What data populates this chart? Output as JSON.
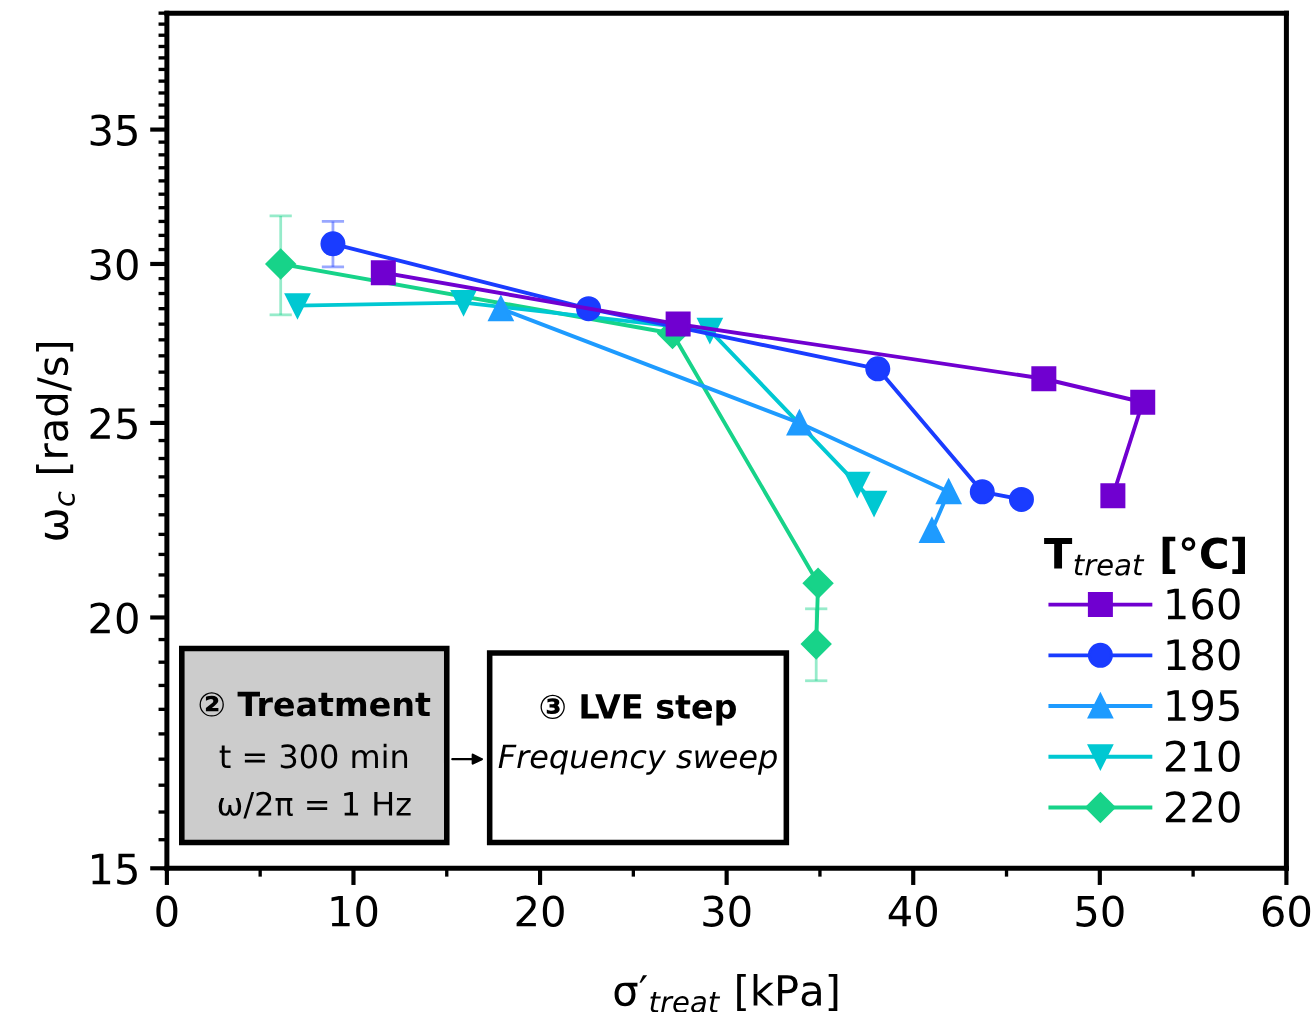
{
  "chart_data": {
    "type": "line",
    "xlabel": "σ′$_{treat}$ [kPa]",
    "ylabel": "ω$_{c}$ [rad/s]",
    "legend_title": "T$_{treat}$ [°C]",
    "log": "y",
    "xlim": [
      0,
      60
    ],
    "xticks": [
      0,
      10,
      20,
      30,
      40,
      50,
      60
    ],
    "ylim": [
      15,
      40
    ],
    "yticks": [
      15,
      20,
      25,
      30,
      35
    ],
    "grid": false,
    "legend": "bottom right",
    "line_style": "solid",
    "series": [
      {
        "name": "160",
        "color": "#7000d0",
        "marker": "square",
        "x": [
          11.6,
          27.4,
          47.0,
          52.3,
          50.7
        ],
        "values": [
          29.7,
          28.0,
          26.3,
          25.6,
          23.0
        ]
      },
      {
        "name": "180",
        "color": "#1a3cff",
        "marker": "circle",
        "x": [
          8.9,
          22.6,
          38.1,
          43.7,
          45.8
        ],
        "values": [
          30.7,
          28.5,
          26.6,
          23.1,
          22.9
        ],
        "errors": [
          [
            29.9,
            31.5
          ],
          null,
          null,
          null,
          null
        ]
      },
      {
        "name": "195",
        "color": "#1e9bff",
        "marker": "triangle",
        "x": [
          17.9,
          33.9,
          41.9,
          41.0
        ],
        "values": [
          28.5,
          25.0,
          23.1,
          22.1
        ]
      },
      {
        "name": "210",
        "color": "#00c8d2",
        "marker": "triangle_down",
        "x": [
          7.0,
          15.9,
          29.1,
          37.0,
          37.9
        ],
        "values": [
          28.6,
          28.7,
          27.8,
          23.3,
          22.8
        ]
      },
      {
        "name": "220",
        "color": "#17d389",
        "marker": "diamond",
        "x": [
          6.1,
          27.1,
          34.9,
          34.8
        ],
        "values": [
          30.0,
          27.7,
          20.8,
          19.4
        ],
        "errors": [
          [
            28.3,
            31.7
          ],
          null,
          null,
          0.8
        ]
      }
    ],
    "annotations": [
      "② Treatment",
      "t = 300 min",
      "ω/2π = 1 Hz",
      "③ LVE step",
      "Frequency sweep"
    ]
  }
}
